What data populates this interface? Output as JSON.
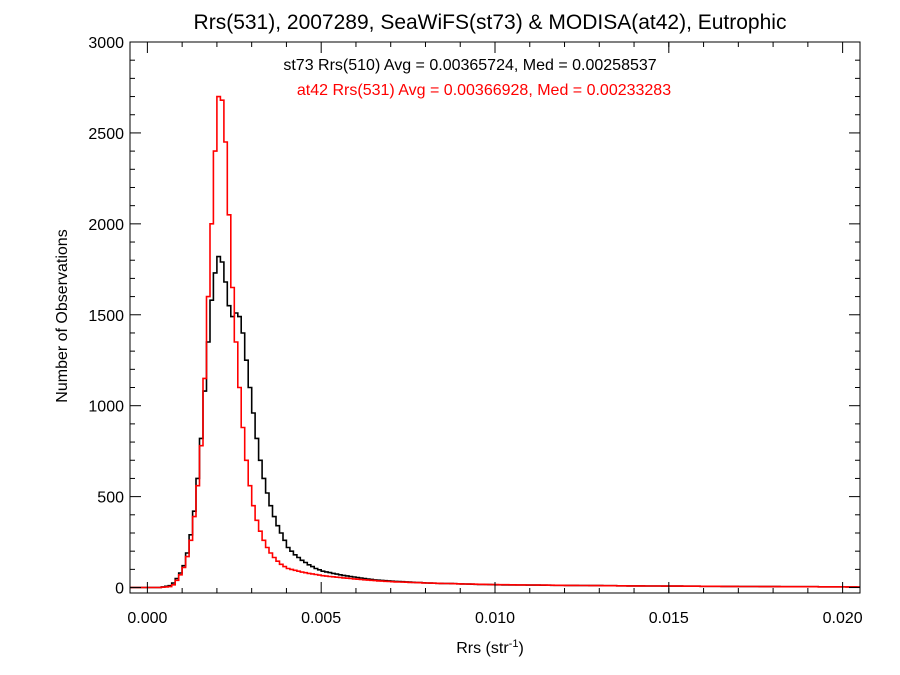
{
  "chart_data": {
    "type": "line",
    "title": "Rrs(531), 2007289, SeaWiFS(st73) & MODISA(at42), Eutrophic",
    "xlabel_main": "Rrs (str",
    "xlabel_sup": "-1",
    "xlabel_close": ")",
    "ylabel": "Number of Observations",
    "xlim": [
      -0.0005,
      0.0205
    ],
    "ylim": [
      -30,
      3000
    ],
    "xticks": [
      0.0,
      0.005,
      0.01,
      0.015,
      0.02
    ],
    "xtick_labels": [
      "0.000",
      "0.005",
      "0.010",
      "0.015",
      "0.020"
    ],
    "yticks": [
      0,
      500,
      1000,
      1500,
      2000,
      2500,
      3000
    ],
    "ytick_labels": [
      "0",
      "500",
      "1000",
      "1500",
      "2000",
      "2500",
      "3000"
    ],
    "grid": false,
    "bin_width": 0.0001,
    "annotations": [
      {
        "text": "st73 Rrs(510) Avg = 0.00365724, Med = 0.00258537",
        "color": "#000000"
      },
      {
        "text": "at42 Rrs(531) Avg = 0.00366928, Med = 0.00233283",
        "color": "#ff0000"
      }
    ],
    "series": [
      {
        "color": "#000000",
        "x": [
          0.0,
          0.0003,
          0.0006,
          0.0007,
          0.0008,
          0.0009,
          0.001,
          0.0011,
          0.0012,
          0.0013,
          0.0014,
          0.0015,
          0.0016,
          0.0017,
          0.0018,
          0.0019,
          0.002,
          0.0021,
          0.0022,
          0.0023,
          0.0024,
          0.0025,
          0.0026,
          0.0027,
          0.0028,
          0.0029,
          0.003,
          0.0031,
          0.0032,
          0.0033,
          0.0034,
          0.0035,
          0.0036,
          0.0037,
          0.0038,
          0.0039,
          0.004,
          0.0042,
          0.0044,
          0.0046,
          0.0048,
          0.005,
          0.0055,
          0.006,
          0.0065,
          0.007,
          0.008,
          0.009,
          0.01,
          0.012,
          0.014,
          0.016,
          0.018,
          0.02,
          0.0205
        ],
        "y": [
          0,
          0,
          10,
          25,
          50,
          80,
          120,
          190,
          290,
          420,
          600,
          820,
          1080,
          1350,
          1580,
          1730,
          1820,
          1790,
          1680,
          1550,
          1490,
          1510,
          1490,
          1400,
          1250,
          1100,
          960,
          820,
          700,
          600,
          520,
          450,
          390,
          340,
          300,
          260,
          220,
          180,
          150,
          125,
          105,
          90,
          70,
          55,
          42,
          35,
          25,
          20,
          15,
          12,
          9,
          7,
          5,
          4,
          3
        ]
      },
      {
        "color": "#ff0000",
        "x": [
          0.0,
          0.0003,
          0.0006,
          0.0007,
          0.0008,
          0.0009,
          0.001,
          0.0011,
          0.0012,
          0.0013,
          0.0014,
          0.0015,
          0.0016,
          0.0017,
          0.0018,
          0.0019,
          0.002,
          0.0021,
          0.0022,
          0.0023,
          0.0024,
          0.0025,
          0.0026,
          0.0027,
          0.0028,
          0.0029,
          0.003,
          0.0031,
          0.0032,
          0.0033,
          0.0034,
          0.0035,
          0.0036,
          0.0037,
          0.0038,
          0.0039,
          0.004,
          0.0042,
          0.0044,
          0.0046,
          0.0048,
          0.005,
          0.0055,
          0.006,
          0.0065,
          0.007,
          0.008,
          0.009,
          0.01,
          0.012,
          0.014,
          0.016,
          0.018,
          0.02,
          0.0205
        ],
        "y": [
          0,
          0,
          5,
          15,
          40,
          70,
          110,
          170,
          260,
          390,
          560,
          780,
          1150,
          1600,
          2000,
          2400,
          2700,
          2680,
          2450,
          2050,
          1650,
          1350,
          1100,
          880,
          700,
          560,
          450,
          370,
          310,
          260,
          220,
          190,
          165,
          145,
          128,
          115,
          105,
          95,
          85,
          78,
          72,
          65,
          55,
          46,
          38,
          32,
          25,
          20,
          16,
          12,
          9,
          7,
          5,
          4,
          3
        ]
      }
    ]
  }
}
